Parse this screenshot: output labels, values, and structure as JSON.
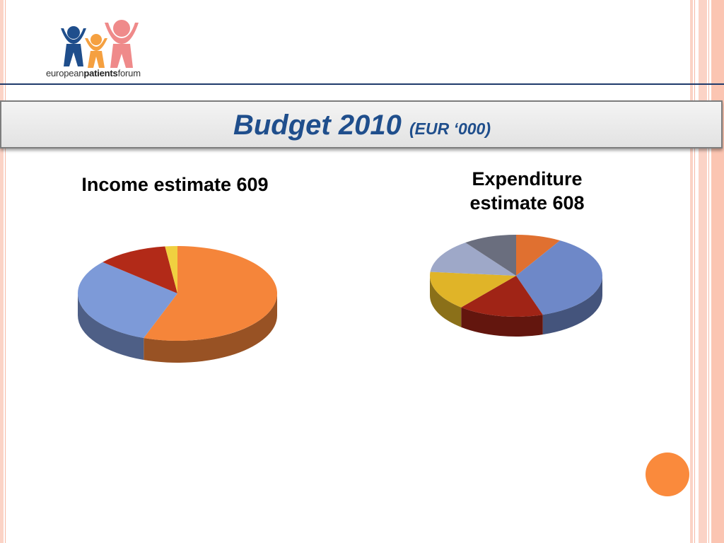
{
  "logo": {
    "text_light": "european",
    "text_bold": "patients",
    "text_tail": "forum"
  },
  "slide": {
    "title": "Budget 2010",
    "title_unit": "(EUR ‘000)"
  },
  "chart_data": [
    {
      "type": "pie",
      "title": "Income estimate 609",
      "slices": [
        {
          "value": 55.5,
          "color": "#f5853a"
        },
        {
          "value": 31.0,
          "color": "#7d9ad8"
        },
        {
          "value": 11.5,
          "color": "#b22a18"
        },
        {
          "value": 2.0,
          "color": "#f0d040"
        }
      ]
    },
    {
      "type": "pie",
      "title": "Expenditure estimate 608",
      "slices": [
        {
          "value": 8.5,
          "color": "#e07030"
        },
        {
          "value": 36.5,
          "color": "#6e88c8"
        },
        {
          "value": 16.0,
          "color": "#a02416"
        },
        {
          "value": 15.5,
          "color": "#e0b428"
        },
        {
          "value": 13.5,
          "color": "#9ea8c8"
        },
        {
          "value": 10.0,
          "color": "#6a6e7e"
        }
      ]
    }
  ],
  "colors": {
    "accent": "#1f4e8c",
    "stripe": "#fbd3c6",
    "dot": "#fa8a3c"
  }
}
